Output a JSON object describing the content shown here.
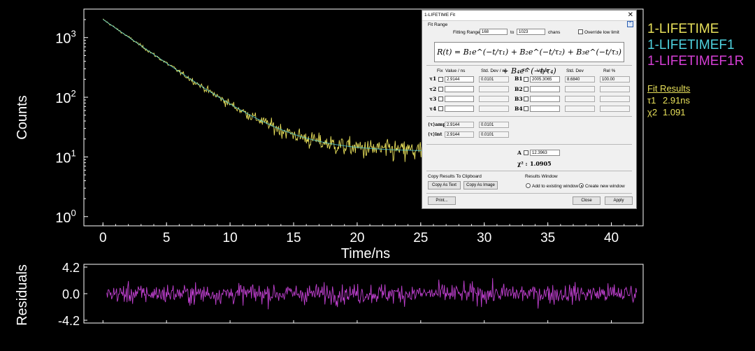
{
  "chart_data": [
    {
      "type": "line",
      "xlabel": "Time/ns",
      "ylabel": "Counts",
      "yscale": "log",
      "xlim": [
        -1.5,
        42.5
      ],
      "ylim": [
        0.7,
        3000
      ],
      "xticks": [
        "0",
        "5",
        "10",
        "15",
        "20",
        "25",
        "30",
        "35",
        "40"
      ],
      "yticks": [
        {
          "base": "10",
          "exp": "3"
        },
        {
          "base": "10",
          "exp": "2"
        },
        {
          "base": "10",
          "exp": "1"
        },
        {
          "base": "10",
          "exp": "0"
        }
      ],
      "decay": {
        "amplitude": 2005.3065,
        "tau_ns": 2.9144,
        "background": 12.3963,
        "t_end_ns": 42
      },
      "series": [
        {
          "name": "1-LIFETIME",
          "color": "#e8e05a"
        },
        {
          "name": "1-LIFETIMEF1",
          "color": "#4fd2de"
        },
        {
          "name": "1-LIFETIMEF1R",
          "color": "#d63fd6"
        }
      ]
    },
    {
      "type": "line",
      "ylabel": "Residuals",
      "ylim": [
        -4.2,
        4.2
      ],
      "yticks": [
        "4.2",
        "0.0",
        "-4.2"
      ],
      "color": "#c040d0"
    }
  ],
  "legend": [
    "1-LIFETIME",
    "1-LIFETIMEF1",
    "1-LIFETIMEF1R"
  ],
  "fit_results": {
    "header": "Fit Results",
    "tau_label": "τ1",
    "tau_value": "2.91ns",
    "chi_label": "χ2",
    "chi_value": "1.091"
  },
  "dialog": {
    "title": "1-LIFETIME   Fit",
    "fit_range_label": "Fit Range",
    "fitting_range_label": "Fitting Range:",
    "range_from": "168",
    "to_label": "to",
    "range_to": "1023",
    "chans_label": "chans",
    "override_label": "Override low limit",
    "formula": "R(t) = B₁e^(−t/τ₁) + B₂e^(−t/τ₂) + B₃e^(−t/τ₃) + B₄e^(−t/τ₄)",
    "col_fix": "Fix",
    "col_value_ns": "Value / ns",
    "col_stddev_ns": "Std. Dev / ns",
    "col_value": "Value",
    "col_stddev": "Std. Dev",
    "col_rel": "Rel %",
    "tau_syms": [
      "τ1",
      "τ2",
      "τ3",
      "τ4"
    ],
    "b_syms": [
      "B1",
      "B2",
      "B3",
      "B4"
    ],
    "tau1_value": "2.9144",
    "tau1_stddev": "0.0101",
    "b1_value": "2005.3065",
    "b1_stddev": "8.6840",
    "b1_rel": "100.00",
    "tau_amp_label": "⟨τ⟩amp",
    "tau_amp_value": "2.9144",
    "tau_amp_stddev": "0.0101",
    "tau_int_label": "⟨τ⟩int",
    "tau_int_value": "2.9144",
    "tau_int_stddev": "0.0101",
    "a_label": "A",
    "a_value": "12.3963",
    "chi_label": "χ² :",
    "chi_value": "1.0905",
    "copy_group": "Copy Results To Clipboard",
    "copy_text": "Copy As Text",
    "copy_image": "Copy As Image",
    "results_group": "Results Window",
    "add_existing": "Add to existing window",
    "create_new": "Create new window",
    "print": "Print...",
    "close": "Close",
    "apply": "Apply"
  }
}
